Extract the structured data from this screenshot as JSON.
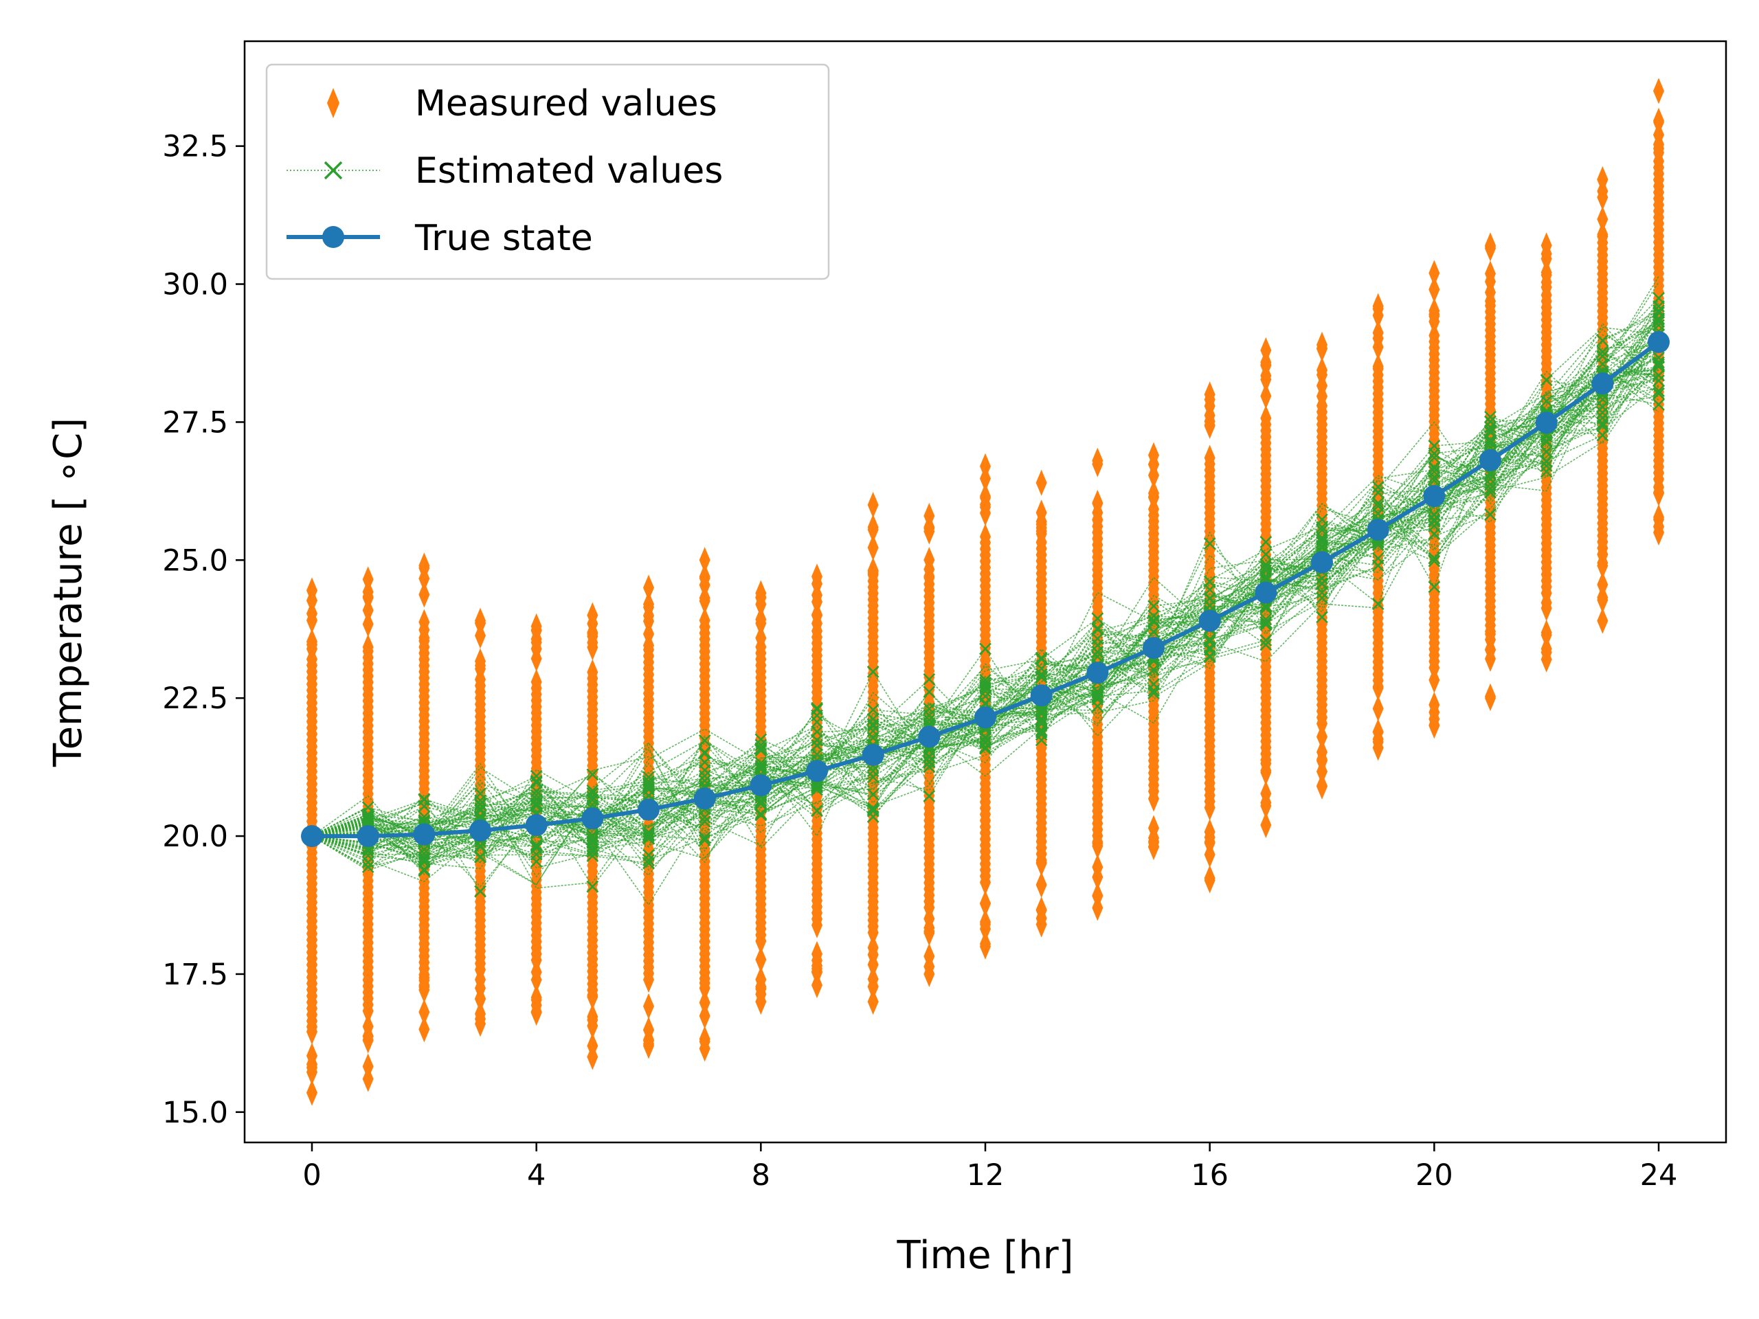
{
  "chart_data": {
    "type": "line",
    "xlabel": "Time [hr]",
    "ylabel": "Temperature [ ∘C]",
    "xlim": [
      -1.2,
      25.2
    ],
    "ylim": [
      14.45,
      34.4
    ],
    "xticks": [
      0,
      4,
      8,
      12,
      16,
      20,
      24
    ],
    "yticks": [
      15.0,
      17.5,
      20.0,
      22.5,
      25.0,
      27.5,
      30.0,
      32.5
    ],
    "ytick_decimals": 1,
    "grid": false,
    "legend_position": "upper-left",
    "x": [
      0,
      1,
      2,
      3,
      4,
      5,
      6,
      7,
      8,
      9,
      10,
      11,
      12,
      13,
      14,
      15,
      16,
      17,
      18,
      19,
      20,
      21,
      22,
      23,
      24
    ],
    "series": [
      {
        "name": "Measured values",
        "kind": "diamond-markers",
        "color": "#ff7f0e",
        "note": "scatter of repeated noisy measurements at each hour; min/max range read from plot",
        "center": [
          20.0,
          20.0,
          20.03,
          20.1,
          20.2,
          20.32,
          20.48,
          20.68,
          20.92,
          21.18,
          21.47,
          21.8,
          22.15,
          22.55,
          22.96,
          23.41,
          23.9,
          24.41,
          24.96,
          25.55,
          26.16,
          26.81,
          27.49,
          28.2,
          28.95
        ],
        "min": [
          15.35,
          15.6,
          16.5,
          16.6,
          16.8,
          16.0,
          16.2,
          16.15,
          17.0,
          17.3,
          17.0,
          17.5,
          18.0,
          18.4,
          18.7,
          19.8,
          19.2,
          20.2,
          20.9,
          21.6,
          22.0,
          22.5,
          23.2,
          23.9,
          25.5
        ],
        "max": [
          24.45,
          24.65,
          24.9,
          23.9,
          23.8,
          24.0,
          24.5,
          25.0,
          24.4,
          24.7,
          26.0,
          25.8,
          26.7,
          26.4,
          26.8,
          26.9,
          28.0,
          28.8,
          28.9,
          29.6,
          30.2,
          30.7,
          30.7,
          31.9,
          33.5
        ]
      },
      {
        "name": "Estimated values",
        "kind": "x-markers-dotted-lines",
        "color": "#2ca02c",
        "note": "ensemble of estimate trajectories; envelope read from plot",
        "lower": [
          20.0,
          19.0,
          18.6,
          18.3,
          18.4,
          18.2,
          18.5,
          18.9,
          19.2,
          19.4,
          19.6,
          19.9,
          20.2,
          20.4,
          20.9,
          21.4,
          21.9,
          22.4,
          22.9,
          23.4,
          24.0,
          24.6,
          25.2,
          25.8,
          26.5
        ],
        "upper": [
          20.0,
          21.3,
          21.9,
          22.1,
          22.3,
          22.6,
          23.1,
          23.1,
          22.8,
          23.3,
          23.6,
          23.9,
          24.2,
          24.6,
          25.0,
          25.5,
          26.0,
          26.5,
          27.1,
          27.6,
          28.2,
          28.8,
          29.5,
          30.2,
          31.0
        ]
      },
      {
        "name": "True state",
        "kind": "line-with-circles",
        "color": "#1f77b4",
        "values": [
          20.0,
          20.0,
          20.03,
          20.1,
          20.2,
          20.32,
          20.48,
          20.68,
          20.92,
          21.18,
          21.47,
          21.8,
          22.15,
          22.55,
          22.96,
          23.41,
          23.9,
          24.41,
          24.96,
          25.55,
          26.16,
          26.81,
          27.49,
          28.2,
          28.95
        ]
      }
    ]
  }
}
